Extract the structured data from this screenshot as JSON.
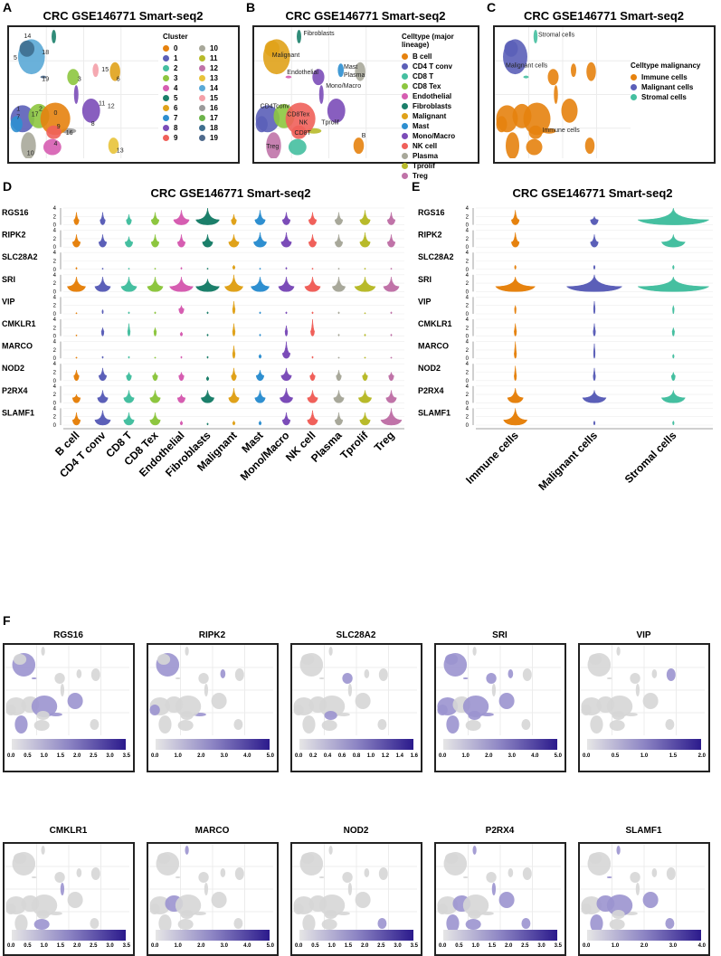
{
  "panel_labels": [
    "A",
    "B",
    "C",
    "D",
    "E",
    "F"
  ],
  "title": "CRC GSE146771 Smart-seq2",
  "chart_data": [
    {
      "panel": "A",
      "type": "scatter",
      "title": "CRC GSE146771 Smart-seq2",
      "legend_title": "Cluster",
      "legend_position": "right",
      "categories": [
        "0",
        "1",
        "2",
        "3",
        "4",
        "5",
        "6",
        "7",
        "8",
        "9",
        "10",
        "11",
        "12",
        "13",
        "14",
        "15",
        "16",
        "17",
        "18",
        "19"
      ],
      "colors": [
        "#E6820E",
        "#5B5FB8",
        "#45BFA0",
        "#8DC63F",
        "#D65DB1",
        "#1B7F6A",
        "#E0A21A",
        "#2E8FD0",
        "#7B4CB8",
        "#F0605A",
        "#A8A89A",
        "#B8BA2A",
        "#C073A8",
        "#E8C33A",
        "#5AA9D6",
        "#F4A0A8",
        "#9A9A9A",
        "#6CB34A",
        "#3E6E8E",
        "#4E6A8C"
      ],
      "annotations": [
        "0",
        "1",
        "2",
        "3",
        "4",
        "5",
        "6",
        "7",
        "8",
        "9",
        "10",
        "11",
        "12",
        "13",
        "14",
        "15",
        "16",
        "17",
        "18",
        "19"
      ]
    },
    {
      "panel": "B",
      "type": "scatter",
      "title": "CRC GSE146771 Smart-seq2",
      "legend_title": "Celltype (major lineage)",
      "legend_position": "right",
      "categories": [
        "B cell",
        "CD4 T conv",
        "CD8 T",
        "CD8 Tex",
        "Endothelial",
        "Fibroblasts",
        "Malignant",
        "Mast",
        "Mono/Macro",
        "NK cell",
        "Plasma",
        "Tprolif",
        "Treg"
      ],
      "colors": [
        "#E6820E",
        "#5B5FB8",
        "#45BFA0",
        "#8DC63F",
        "#D65DB1",
        "#1B7F6A",
        "#E0A21A",
        "#2E8FD0",
        "#7B4CB8",
        "#F0605A",
        "#A8A89A",
        "#B8BA2A",
        "#C073A8"
      ],
      "annotations": [
        "Fibroblasts",
        "Malignant",
        "Endothelial",
        "Mast",
        "Plasma",
        "Mono/Macro",
        "CD4Tconv",
        "CD8Tex",
        "NK",
        "Tprolif",
        "B",
        "Treg",
        "CD8T"
      ]
    },
    {
      "panel": "C",
      "type": "scatter",
      "title": "CRC GSE146771 Smart-seq2",
      "legend_title": "Celltype malignancy",
      "legend_position": "right",
      "categories": [
        "Immune cells",
        "Malignant cells",
        "Stromal cells"
      ],
      "colors": [
        "#E6820E",
        "#5B5FB8",
        "#45BFA0"
      ],
      "annotations": [
        "Stromal cells",
        "Malignant cells",
        "Immune cells"
      ]
    },
    {
      "panel": "D",
      "type": "violin",
      "title": "CRC GSE146771 Smart-seq2",
      "genes": [
        "RGS16",
        "RIPK2",
        "SLC28A2",
        "SRI",
        "VIP",
        "CMKLR1",
        "MARCO",
        "NOD2",
        "P2RX4",
        "SLAMF1"
      ],
      "categories": [
        "B cell",
        "CD4 T conv",
        "CD8 T",
        "CD8 Tex",
        "Endothelial",
        "Fibroblasts",
        "Malignant",
        "Mast",
        "Mono/Macro",
        "NK cell",
        "Plasma",
        "Tprolif",
        "Treg"
      ],
      "yticks": [
        "4",
        "2",
        "0"
      ],
      "ylim": [
        0,
        4
      ],
      "max_expression": [
        [
          3,
          3,
          2.5,
          3,
          3.5,
          4,
          2.5,
          3.5,
          3,
          3,
          3,
          3.5,
          3
        ],
        [
          3,
          3,
          2.5,
          3,
          3,
          3,
          3,
          3.5,
          3.5,
          3,
          3,
          3.5,
          3
        ],
        [
          0.5,
          0.3,
          0.3,
          0.3,
          0.5,
          0.3,
          1,
          0.3,
          0.5,
          0.3,
          0.3,
          0.3,
          0.3
        ],
        [
          3.5,
          3.5,
          3.5,
          3.5,
          3.5,
          3,
          4,
          3.5,
          3.5,
          3.5,
          3.5,
          3.5,
          3.5
        ],
        [
          0.3,
          1,
          0.5,
          0.5,
          2,
          0.5,
          3,
          0.5,
          0.5,
          0.5,
          0.5,
          0.3,
          0.5
        ],
        [
          0.3,
          2,
          3,
          2,
          1,
          0.5,
          3,
          0.5,
          2.5,
          4,
          0.5,
          0.5,
          0.5
        ],
        [
          0.3,
          0.5,
          0.5,
          0.3,
          0.5,
          0.5,
          3,
          1,
          4,
          0.5,
          0.3,
          0.3,
          0.3
        ],
        [
          2.5,
          3,
          2,
          2,
          2,
          1,
          3,
          2.5,
          3,
          2,
          2.5,
          2,
          2
        ],
        [
          2,
          3,
          3,
          3,
          2,
          3,
          3.5,
          3,
          3.5,
          3,
          3,
          3,
          3
        ],
        [
          3,
          3.5,
          3,
          3,
          1,
          0.5,
          1,
          1,
          3,
          3.5,
          3,
          3,
          4
        ]
      ],
      "density_width": [
        [
          0.2,
          0.2,
          0.2,
          0.3,
          0.6,
          0.9,
          0.2,
          0.4,
          0.3,
          0.3,
          0.3,
          0.4,
          0.3
        ],
        [
          0.3,
          0.3,
          0.3,
          0.3,
          0.3,
          0.4,
          0.4,
          0.5,
          0.4,
          0.3,
          0.3,
          0.4,
          0.3
        ],
        [
          0.05,
          0.05,
          0.05,
          0.05,
          0.05,
          0.05,
          0.1,
          0.05,
          0.05,
          0.05,
          0.05,
          0.05,
          0.05
        ],
        [
          0.7,
          0.6,
          0.6,
          0.6,
          0.9,
          0.9,
          0.7,
          0.7,
          0.6,
          0.6,
          0.5,
          0.8,
          0.6
        ],
        [
          0.05,
          0.05,
          0.05,
          0.05,
          0.2,
          0.05,
          0.1,
          0.05,
          0.05,
          0.05,
          0.05,
          0.05,
          0.05
        ],
        [
          0.05,
          0.1,
          0.1,
          0.1,
          0.1,
          0.05,
          0.1,
          0.05,
          0.1,
          0.15,
          0.05,
          0.05,
          0.05
        ],
        [
          0.05,
          0.05,
          0.05,
          0.05,
          0.05,
          0.05,
          0.1,
          0.1,
          0.3,
          0.05,
          0.05,
          0.05,
          0.05
        ],
        [
          0.2,
          0.3,
          0.2,
          0.2,
          0.2,
          0.1,
          0.2,
          0.3,
          0.4,
          0.2,
          0.2,
          0.2,
          0.2
        ],
        [
          0.3,
          0.4,
          0.4,
          0.4,
          0.3,
          0.5,
          0.4,
          0.4,
          0.5,
          0.4,
          0.4,
          0.5,
          0.4
        ],
        [
          0.3,
          0.6,
          0.4,
          0.4,
          0.1,
          0.05,
          0.1,
          0.1,
          0.3,
          0.4,
          0.3,
          0.4,
          0.8
        ]
      ]
    },
    {
      "panel": "E",
      "type": "violin",
      "title": "CRC GSE146771 Smart-seq2",
      "genes": [
        "RGS16",
        "RIPK2",
        "SLC28A2",
        "SRI",
        "VIP",
        "CMKLR1",
        "MARCO",
        "NOD2",
        "P2RX4",
        "SLAMF1"
      ],
      "categories": [
        "Immune cells",
        "Malignant cells",
        "Stromal cells"
      ],
      "yticks": [
        "4",
        "2",
        "0"
      ],
      "ylim": [
        0,
        4
      ],
      "max_expression": [
        [
          3.5,
          2,
          4
        ],
        [
          3.5,
          3,
          3
        ],
        [
          1,
          1,
          1
        ],
        [
          3.5,
          4,
          3.5
        ],
        [
          2,
          3,
          2
        ],
        [
          3,
          3,
          2
        ],
        [
          4,
          3.5,
          1
        ],
        [
          3.5,
          3,
          2
        ],
        [
          3.5,
          3,
          3
        ],
        [
          4,
          1,
          1
        ]
      ],
      "density_width": [
        [
          0.1,
          0.1,
          0.9
        ],
        [
          0.1,
          0.1,
          0.3
        ],
        [
          0.02,
          0.02,
          0.02
        ],
        [
          0.5,
          0.7,
          0.9
        ],
        [
          0.02,
          0.02,
          0.02
        ],
        [
          0.03,
          0.03,
          0.03
        ],
        [
          0.03,
          0.02,
          0.02
        ],
        [
          0.03,
          0.03,
          0.05
        ],
        [
          0.2,
          0.3,
          0.3
        ],
        [
          0.3,
          0.02,
          0.02
        ]
      ]
    },
    {
      "panel": "F",
      "type": "scatter",
      "subtype": "feature_plot",
      "color_low": "#e6e6e6",
      "color_high": "#2b1a8c",
      "features": [
        {
          "gene": "RGS16",
          "ticks": [
            "0.0",
            "0.5",
            "1.0",
            "1.5",
            "2.0",
            "2.5",
            "3.0",
            "3.5"
          ],
          "range": [
            0,
            3.5
          ]
        },
        {
          "gene": "RIPK2",
          "ticks": [
            "0.0",
            "1.0",
            "2.0",
            "3.0",
            "4.0",
            "5.0"
          ],
          "range": [
            0,
            5
          ]
        },
        {
          "gene": "SLC28A2",
          "ticks": [
            "0.0",
            "0.2",
            "0.4",
            "0.6",
            "0.8",
            "1.0",
            "1.2",
            "1.4",
            "1.6"
          ],
          "range": [
            0,
            1.6
          ]
        },
        {
          "gene": "SRI",
          "ticks": [
            "0.0",
            "1.0",
            "2.0",
            "3.0",
            "4.0",
            "5.0"
          ],
          "range": [
            0,
            5
          ]
        },
        {
          "gene": "VIP",
          "ticks": [
            "0.0",
            "0.5",
            "1.0",
            "1.5",
            "2.0"
          ],
          "range": [
            0,
            2
          ]
        },
        {
          "gene": "CMKLR1",
          "ticks": [
            "0.0",
            "0.5",
            "1.0",
            "1.5",
            "2.0",
            "2.5",
            "3.0",
            "3.5"
          ],
          "range": [
            0,
            3.5
          ]
        },
        {
          "gene": "MARCO",
          "ticks": [
            "0.0",
            "1.0",
            "2.0",
            "3.0",
            "4.0",
            "5.0"
          ],
          "range": [
            0,
            5
          ]
        },
        {
          "gene": "NOD2",
          "ticks": [
            "0.0",
            "0.5",
            "1.0",
            "1.5",
            "2.0",
            "2.5",
            "3.0",
            "3.5"
          ],
          "range": [
            0,
            3.5
          ]
        },
        {
          "gene": "P2RX4",
          "ticks": [
            "0.0",
            "0.5",
            "1.0",
            "1.5",
            "2.0",
            "2.5",
            "3.0",
            "3.5"
          ],
          "range": [
            0,
            3.5
          ]
        },
        {
          "gene": "SLAMF1",
          "ticks": [
            "0.0",
            "1.0",
            "2.0",
            "3.0",
            "4.0"
          ],
          "range": [
            0,
            4
          ]
        }
      ],
      "expression_density": [
        0.25,
        0.2,
        0.05,
        0.6,
        0.05,
        0.08,
        0.05,
        0.1,
        0.35,
        0.35
      ]
    }
  ]
}
